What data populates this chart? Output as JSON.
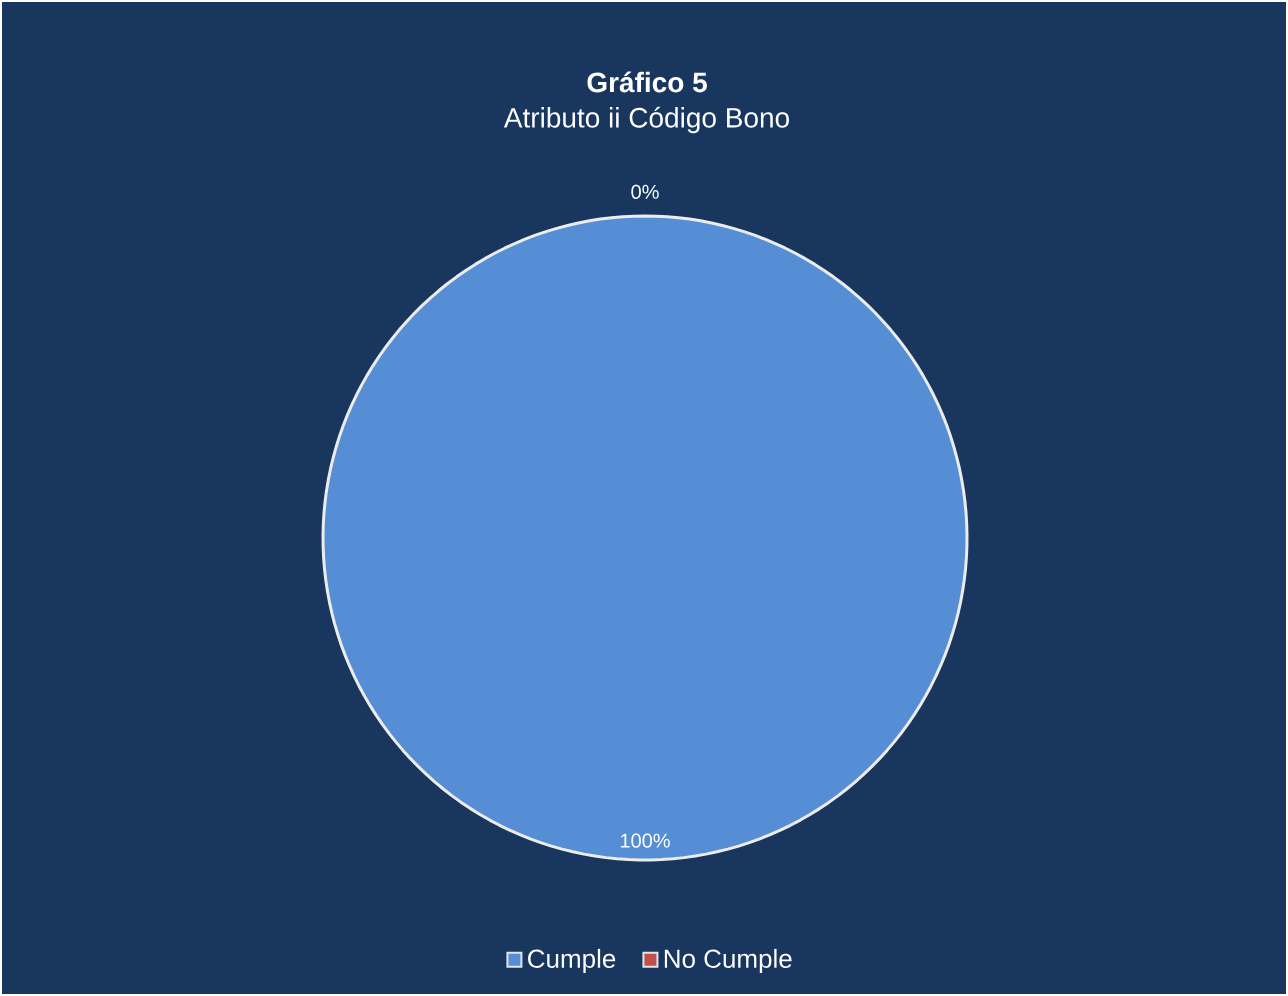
{
  "chart_data": {
    "type": "pie",
    "title": "Gráfico 5",
    "subtitle": "Atributo ii Código Bono",
    "categories": [
      "Cumple",
      "No Cumple"
    ],
    "values": [
      100,
      0
    ],
    "value_labels": [
      "100%",
      "0%"
    ],
    "colors": [
      "#558ed5",
      "#c0504d"
    ],
    "legend": "bottom"
  }
}
